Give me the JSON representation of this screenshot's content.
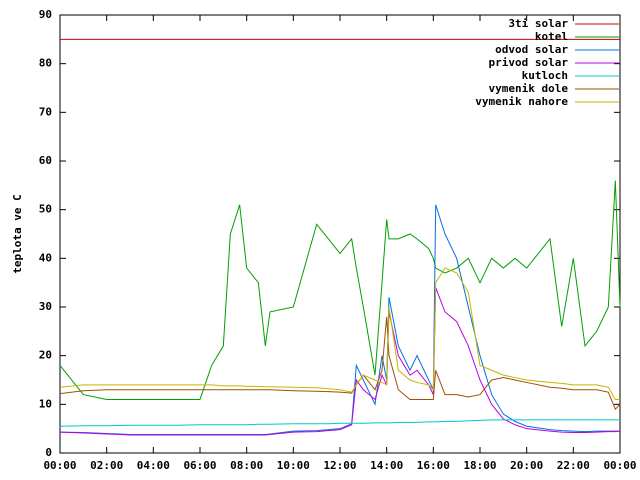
{
  "chart_data": {
    "type": "line",
    "y_label": "teplota ve C",
    "x": [
      0,
      1,
      2,
      3,
      4,
      5,
      6,
      6.5,
      7,
      7.3,
      7.7,
      8,
      8.5,
      8.8,
      9,
      10,
      11,
      11.5,
      12,
      12.5,
      12.7,
      13,
      13.5,
      13.8,
      14,
      14.1,
      14.5,
      15,
      15.3,
      15.8,
      16,
      16.1,
      16.5,
      17,
      17.5,
      18,
      18.5,
      19,
      19.5,
      20,
      21,
      21.5,
      22,
      22.5,
      23,
      23.5,
      23.8,
      24
    ],
    "xlim": [
      0,
      24
    ],
    "xticks": [
      {
        "value": 0,
        "label": "00:00"
      },
      {
        "value": 2,
        "label": "02:00"
      },
      {
        "value": 4,
        "label": "04:00"
      },
      {
        "value": 6,
        "label": "06:00"
      },
      {
        "value": 8,
        "label": "08:00"
      },
      {
        "value": 10,
        "label": "10:00"
      },
      {
        "value": 12,
        "label": "12:00"
      },
      {
        "value": 14,
        "label": "14:00"
      },
      {
        "value": 16,
        "label": "16:00"
      },
      {
        "value": 18,
        "label": "18:00"
      },
      {
        "value": 20,
        "label": "20:00"
      },
      {
        "value": 22,
        "label": "22:00"
      },
      {
        "value": 24,
        "label": "00:00"
      }
    ],
    "ylim": [
      0,
      90
    ],
    "yticks": [
      0,
      10,
      20,
      30,
      40,
      50,
      60,
      70,
      80,
      90
    ],
    "legend": "top-right",
    "series": [
      {
        "name": "3ti solar",
        "color": "#cc0000",
        "values": [
          85,
          85,
          85,
          85,
          85,
          85,
          85,
          85,
          85,
          85,
          85,
          85,
          85,
          85,
          85,
          85,
          85,
          85,
          85,
          85,
          85,
          85,
          85,
          85,
          85,
          85,
          85,
          85,
          85,
          85,
          85,
          85,
          85,
          85,
          85,
          85,
          85,
          85,
          85,
          85,
          85,
          85,
          85,
          85,
          85,
          85,
          85,
          85
        ]
      },
      {
        "name": "kotel",
        "color": "#00a000",
        "values": [
          18,
          12,
          11,
          11,
          11,
          11,
          11,
          18,
          22,
          45,
          51,
          38,
          35,
          22,
          29,
          30,
          47,
          44,
          41,
          44,
          38,
          30,
          16,
          35,
          48,
          44,
          44,
          45,
          44,
          42,
          40,
          38,
          37,
          38,
          40,
          35,
          40,
          38,
          40,
          38,
          44,
          26,
          40,
          22,
          25,
          30,
          56,
          30
        ]
      },
      {
        "name": "odvod solar",
        "color": "#0070e0",
        "values": [
          4.3,
          4.2,
          4,
          3.8,
          3.8,
          3.8,
          3.8,
          3.8,
          3.8,
          3.8,
          3.8,
          3.8,
          3.8,
          3.8,
          3.9,
          4.5,
          4.6,
          4.8,
          5,
          6,
          18,
          15,
          10,
          20,
          15,
          32,
          22,
          17,
          20,
          15,
          13,
          51,
          45,
          40,
          30,
          20,
          12,
          8,
          6.5,
          5.5,
          4.8,
          4.6,
          4.5,
          4.4,
          4.5,
          4.5,
          4.5,
          4.5
        ]
      },
      {
        "name": "privod solar",
        "color": "#c000e0",
        "values": [
          4.3,
          4.1,
          3.9,
          3.7,
          3.7,
          3.7,
          3.7,
          3.7,
          3.7,
          3.7,
          3.7,
          3.7,
          3.7,
          3.7,
          3.8,
          4.3,
          4.4,
          4.6,
          4.8,
          5.8,
          15,
          13,
          11,
          16,
          14,
          29,
          20,
          16,
          17,
          14,
          12,
          34,
          29,
          27,
          22,
          15,
          10,
          7,
          5.8,
          5,
          4.5,
          4.3,
          4.2,
          4.2,
          4.3,
          4.4,
          4.4,
          4.5
        ]
      },
      {
        "name": "kutloch",
        "color": "#00c8c8",
        "values": [
          5.5,
          5.6,
          5.6,
          5.7,
          5.7,
          5.7,
          5.8,
          5.8,
          5.8,
          5.8,
          5.8,
          5.8,
          5.9,
          5.9,
          5.9,
          6,
          6,
          6,
          6.1,
          6.1,
          6.1,
          6.1,
          6.2,
          6.2,
          6.2,
          6.2,
          6.3,
          6.3,
          6.3,
          6.4,
          6.4,
          6.4,
          6.5,
          6.5,
          6.6,
          6.7,
          6.8,
          6.8,
          6.8,
          6.8,
          6.8,
          6.8,
          6.8,
          6.8,
          6.8,
          6.8,
          6.8,
          6.8
        ]
      },
      {
        "name": "vymenik dole",
        "color": "#a05000",
        "values": [
          12.2,
          12.8,
          13,
          13,
          13,
          13,
          13,
          13,
          13,
          13,
          13,
          13,
          13,
          13,
          13,
          12.8,
          12.7,
          12.6,
          12.5,
          12.3,
          14,
          16,
          13,
          17,
          28,
          20,
          13,
          11,
          11,
          11,
          11,
          17,
          12,
          12,
          11.5,
          12,
          15,
          15.5,
          15,
          14.5,
          13.5,
          13.3,
          13,
          13,
          13,
          12.5,
          9,
          10
        ]
      },
      {
        "name": "vymenik nahore",
        "color": "#c8b400",
        "values": [
          13.5,
          14,
          14,
          14,
          14,
          14,
          14,
          14,
          13.8,
          13.8,
          13.8,
          13.7,
          13.7,
          13.6,
          13.6,
          13.5,
          13.4,
          13.2,
          13,
          12.5,
          14,
          16,
          15,
          14.5,
          14,
          30,
          17,
          15,
          14.5,
          14,
          13,
          35,
          38,
          37,
          33,
          18,
          17,
          16,
          15.5,
          15,
          14.5,
          14.3,
          14,
          14,
          14,
          13.5,
          11,
          11
        ]
      }
    ]
  }
}
